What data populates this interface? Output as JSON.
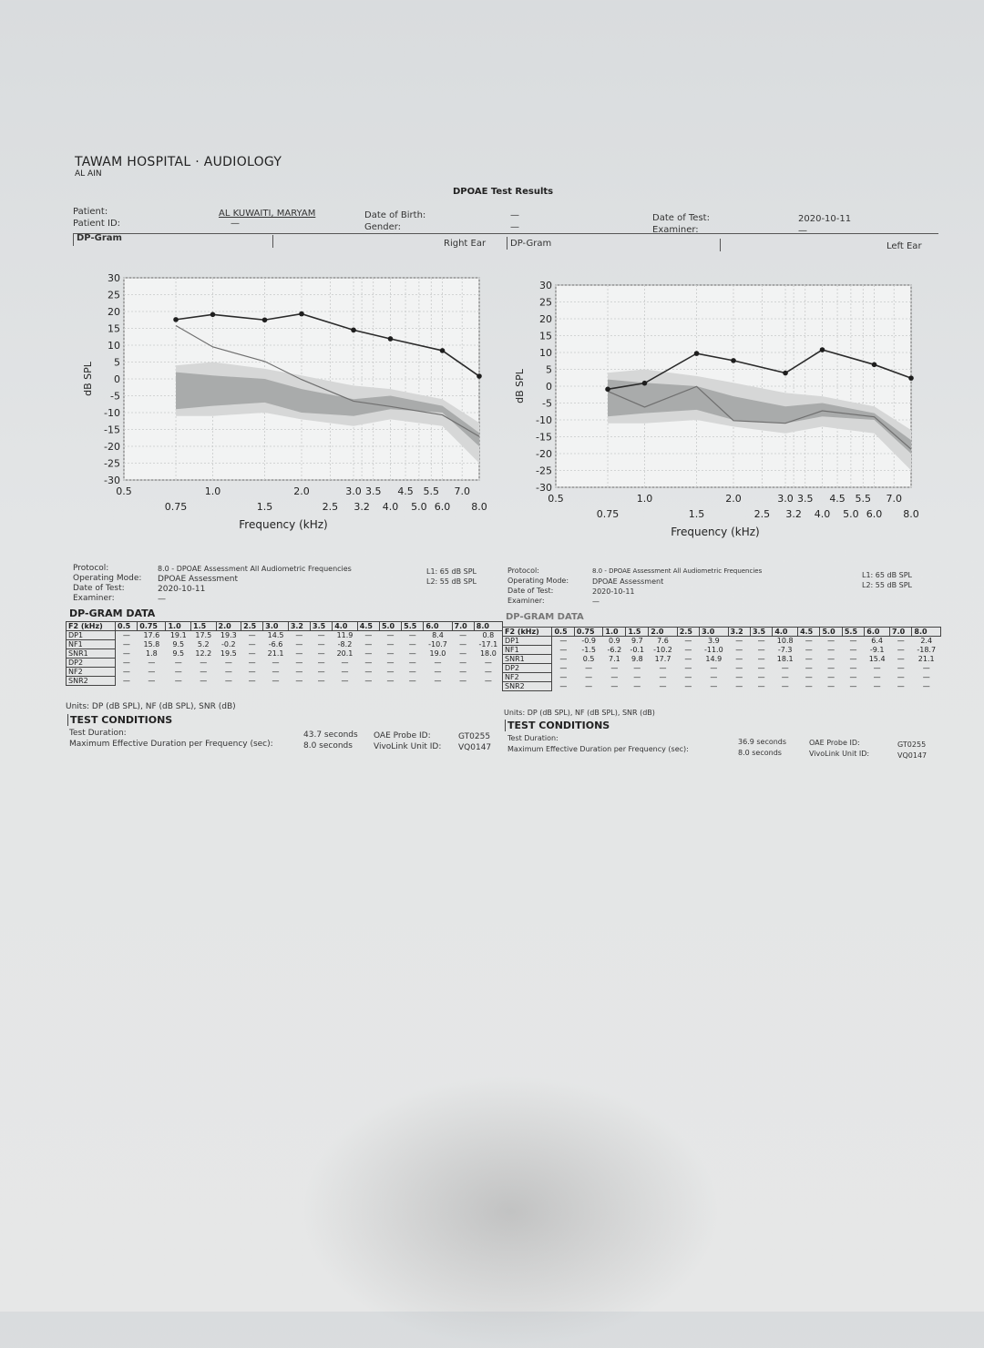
{
  "header": {
    "hospital": "TAWAM HOSPITAL · AUDIOLOGY",
    "city": "AL AIN",
    "title": "DPOAE Test Results",
    "patient_label": "Patient:",
    "patient_id_label": "Patient ID:",
    "patient_name": "AL KUWAITI, MARYAM",
    "patient_id": "—",
    "dob_label": "Date of Birth:",
    "gender_label": "Gender:",
    "dob": "—",
    "gender": "—",
    "date_label": "Date of Test:",
    "examiner_label": "Examiner:",
    "date": "2020-10-11",
    "examiner": "—",
    "dpgram_left_label": "DP-Gram",
    "right_ear": "Right Ear",
    "dpgram_right_label": "DP-Gram",
    "left_ear": "Left Ear"
  },
  "chart_data": [
    {
      "type": "line",
      "ear": "Right Ear",
      "ylabel": "dB SPL",
      "xlabel": "Frequency (kHz)",
      "ylim": [
        -30,
        30
      ],
      "yticks": [
        "30",
        "25",
        "20",
        "15",
        "10",
        "5",
        "0",
        "-5",
        "-10",
        "-15",
        "-20",
        "-25",
        "-30"
      ],
      "xticks_top": [
        "0.5",
        "1.0",
        "2.0",
        "3.0",
        "3.5",
        "4.5",
        "5.5",
        "7.0"
      ],
      "xticks_bottom": [
        "0.75",
        "1.5",
        "2.5",
        "3.2",
        "4.0",
        "5.0",
        "6.0",
        "8.0"
      ],
      "x": [
        0.75,
        1.0,
        1.5,
        2.0,
        3.0,
        4.0,
        6.0,
        8.0
      ],
      "series": [
        {
          "values": [
            17.6,
            19.1,
            17.5,
            19.3,
            14.5,
            11.9,
            8.4,
            0.8
          ]
        },
        {
          "values": [
            15.8,
            9.5,
            5.2,
            -0.2,
            -6.6,
            -8.2,
            -10.7,
            -17.1
          ]
        }
      ]
    },
    {
      "type": "line",
      "ear": "Left Ear",
      "ylabel": "dB SPL",
      "xlabel": "Frequency (kHz)",
      "ylim": [
        -30,
        30
      ],
      "yticks": [
        "30",
        "25",
        "20",
        "15",
        "10",
        "5",
        "0",
        "-5",
        "-10",
        "-15",
        "-20",
        "-25",
        "-30"
      ],
      "xticks_top": [
        "0.5",
        "1.0",
        "2.0",
        "3.0",
        "3.5",
        "4.5",
        "5.5",
        "7.0"
      ],
      "xticks_bottom": [
        "0.75",
        "1.5",
        "2.5",
        "3.2",
        "4.0",
        "5.0",
        "6.0",
        "8.0"
      ],
      "x": [
        0.75,
        1.0,
        1.5,
        2.0,
        3.0,
        4.0,
        6.0,
        8.0
      ],
      "series": [
        {
          "values": [
            -0.9,
            0.9,
            9.7,
            7.6,
            3.9,
            10.8,
            6.4,
            2.4
          ]
        },
        {
          "values": [
            -1.5,
            -6.2,
            -0.1,
            -10.2,
            -11.0,
            -7.3,
            -9.1,
            -18.7
          ]
        }
      ]
    }
  ],
  "right": {
    "protocol_label": "Protocol:",
    "protocol": "8.0 - DPOAE Assessment All Audiometric Frequencies",
    "mode_label": "Operating Mode:",
    "mode": "DPOAE Assessment",
    "date_label": "Date of Test:",
    "date": "2020-10-11",
    "examiner_label": "Examiner:",
    "examiner": "—",
    "l1": "L1:  65 dB SPL",
    "l2": "L2:  55 dB SPL",
    "data_title": "DP-GRAM DATA",
    "units": "Units: DP (dB SPL), NF (dB SPL), SNR (dB)",
    "conditions_title": "TEST CONDITIONS",
    "duration_label": "Test Duration:",
    "duration": "43.7 seconds",
    "maxdur_label": "Maximum Effective Duration per Frequency (sec):",
    "maxdur": "8.0 seconds",
    "probe_label": "OAE Probe ID:",
    "probe": "GT0255",
    "unit_label": "VivoLink Unit ID:",
    "unit": "VQ0147"
  },
  "left": {
    "protocol_label": "Protocol:",
    "protocol": "8.0 - DPOAE Assessment All Audiometric Frequencies",
    "mode_label": "Operating Mode:",
    "mode": "DPOAE Assessment",
    "date_label": "Date of Test:",
    "date": "2020-10-11",
    "examiner_label": "Examiner:",
    "examiner": "—",
    "l1": "L1:  65 dB SPL",
    "l2": "L2:  55 dB SPL",
    "data_title": "DP-GRAM DATA",
    "units": "Units: DP (dB SPL), NF (dB SPL), SNR (dB)",
    "conditions_title": "TEST CONDITIONS",
    "duration_label": "Test Duration:",
    "duration": "36.9 seconds",
    "maxdur_label": "Maximum Effective Duration per Frequency (sec):",
    "maxdur": "8.0 seconds",
    "probe_label": "OAE Probe ID:",
    "probe": "GT0255",
    "unit_label": "VivoLink Unit ID:",
    "unit": "VQ0147"
  },
  "table_right": {
    "header": [
      "F2 (kHz)",
      "0.5",
      "0.75",
      "1.0",
      "1.5",
      "2.0",
      "2.5",
      "3.0",
      "3.2",
      "3.5",
      "4.0",
      "4.5",
      "5.0",
      "5.5",
      "6.0",
      "7.0",
      "8.0"
    ],
    "rows": [
      [
        "DP1",
        "—",
        "17.6",
        "19.1",
        "17.5",
        "19.3",
        "—",
        "14.5",
        "—",
        "—",
        "11.9",
        "—",
        "—",
        "—",
        "8.4",
        "—",
        "0.8"
      ],
      [
        "NF1",
        "—",
        "15.8",
        "9.5",
        "5.2",
        "-0.2",
        "—",
        "-6.6",
        "—",
        "—",
        "-8.2",
        "—",
        "—",
        "—",
        "-10.7",
        "—",
        "-17.1"
      ],
      [
        "SNR1",
        "—",
        "1.8",
        "9.5",
        "12.2",
        "19.5",
        "—",
        "21.1",
        "—",
        "—",
        "20.1",
        "—",
        "—",
        "—",
        "19.0",
        "—",
        "18.0"
      ],
      [
        "DP2",
        "—",
        "—",
        "—",
        "—",
        "—",
        "—",
        "—",
        "—",
        "—",
        "—",
        "—",
        "—",
        "—",
        "—",
        "—",
        "—"
      ],
      [
        "NF2",
        "—",
        "—",
        "—",
        "—",
        "—",
        "—",
        "—",
        "—",
        "—",
        "—",
        "—",
        "—",
        "—",
        "—",
        "—",
        "—"
      ],
      [
        "SNR2",
        "—",
        "—",
        "—",
        "—",
        "—",
        "—",
        "—",
        "—",
        "—",
        "—",
        "—",
        "—",
        "—",
        "—",
        "—",
        "—"
      ]
    ]
  },
  "table_left": {
    "header": [
      "F2 (kHz)",
      "0.5",
      "0.75",
      "1.0",
      "1.5",
      "2.0",
      "2.5",
      "3.0",
      "3.2",
      "3.5",
      "4.0",
      "4.5",
      "5.0",
      "5.5",
      "6.0",
      "7.0",
      "8.0"
    ],
    "rows": [
      [
        "DP1",
        "—",
        "-0.9",
        "0.9",
        "9.7",
        "7.6",
        "—",
        "3.9",
        "—",
        "—",
        "10.8",
        "—",
        "—",
        "—",
        "6.4",
        "—",
        "2.4"
      ],
      [
        "NF1",
        "—",
        "-1.5",
        "-6.2",
        "-0.1",
        "-10.2",
        "—",
        "-11.0",
        "—",
        "—",
        "-7.3",
        "—",
        "—",
        "—",
        "-9.1",
        "—",
        "-18.7"
      ],
      [
        "SNR1",
        "—",
        "0.5",
        "7.1",
        "9.8",
        "17.7",
        "—",
        "14.9",
        "—",
        "—",
        "18.1",
        "—",
        "—",
        "—",
        "15.4",
        "—",
        "21.1"
      ],
      [
        "DP2",
        "—",
        "—",
        "—",
        "—",
        "—",
        "—",
        "—",
        "—",
        "—",
        "—",
        "—",
        "—",
        "—",
        "—",
        "—",
        "—"
      ],
      [
        "NF2",
        "—",
        "—",
        "—",
        "—",
        "—",
        "—",
        "—",
        "—",
        "—",
        "—",
        "—",
        "—",
        "—",
        "—",
        "—",
        "—"
      ],
      [
        "SNR2",
        "—",
        "—",
        "—",
        "—",
        "—",
        "—",
        "—",
        "—",
        "—",
        "—",
        "—",
        "—",
        "—",
        "—",
        "—",
        "—"
      ]
    ]
  }
}
